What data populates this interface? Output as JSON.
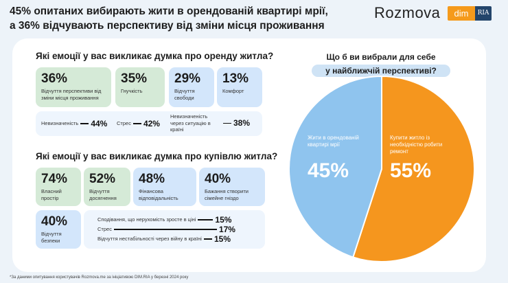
{
  "header": {
    "title_line1": "45% опитаних вибирають жити в орендованій квартирі мрії,",
    "title_line2": "а 36% відчувають перспективу від зміни місця проживання",
    "logo_rozmova": "Rozmova",
    "logo_dim": "dim",
    "logo_ria": "RIA"
  },
  "rent": {
    "question": "Які емоції у вас викликає думка про оренду житла?",
    "cards": [
      {
        "value": "36%",
        "label": "Відчуття перспективи від зміни місця проживання"
      },
      {
        "value": "35%",
        "label": "Гнучкість"
      },
      {
        "value": "29%",
        "label": "Відчуття свободи"
      },
      {
        "value": "13%",
        "label": "Комфорт"
      }
    ],
    "minor": [
      {
        "label": "Невизначеність",
        "value": "44%"
      },
      {
        "label": "Стрес",
        "value": "42%"
      },
      {
        "label": "Невизначеність через ситуацію в країні",
        "value": "38%"
      }
    ]
  },
  "buy": {
    "question": "Які емоції у вас викликає думка про купівлю житла?",
    "cards": [
      {
        "value": "74%",
        "label": "Власний простір"
      },
      {
        "value": "52%",
        "label": "Відчуття досягнення"
      },
      {
        "value": "48%",
        "label": "Фінансова відповідальність"
      },
      {
        "value": "40%",
        "label": "Бажання створити сімейне гніздо"
      },
      {
        "value": "40%",
        "label": "Відчуття безпеки"
      }
    ],
    "minor": [
      {
        "label": "Сподівання, що нерухомість зросте в ціні",
        "value": "15%"
      },
      {
        "label": "Стрес",
        "value": "17%"
      },
      {
        "label": "Відчуття нестабільності через війну в країні",
        "value": "15%"
      }
    ]
  },
  "chart_data": {
    "type": "pie",
    "title_line1": "Що б ви вибрали для себе",
    "title_line2": "у найближчій перспективі?",
    "slices": [
      {
        "label": "Купити житло із необхідністю робити ремонт",
        "value": 55,
        "display": "55%",
        "color": "#f5961e"
      },
      {
        "label": "Жити в орендованій квартирі мрії",
        "value": 45,
        "display": "45%",
        "color": "#8fc4ee"
      }
    ]
  },
  "footer": "*За даними опитування користувачів Rozmova.me за ініціативою DIM.RIA у березні 2024 року"
}
